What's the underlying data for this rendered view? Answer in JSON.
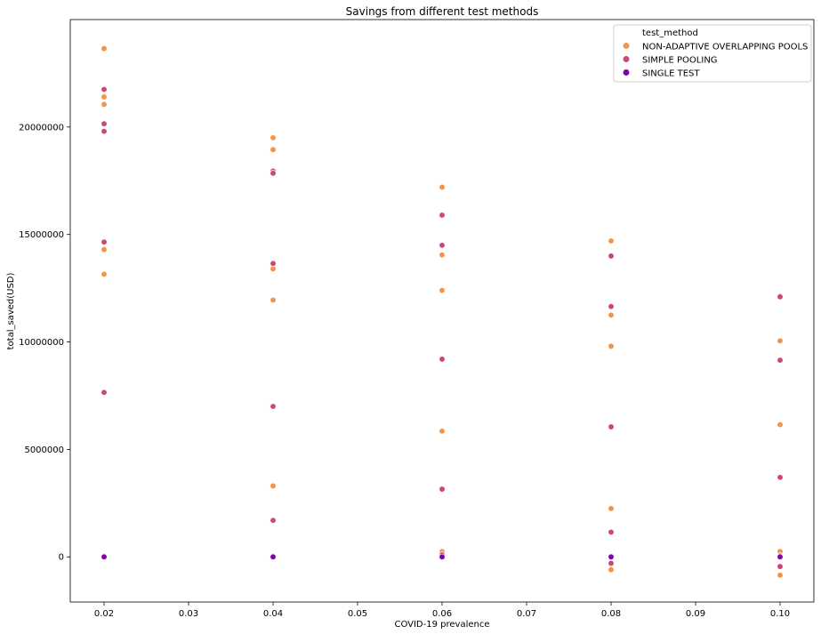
{
  "chart_data": {
    "type": "scatter",
    "title": "Savings from different test methods",
    "xlabel": "COVID-19 prevalence",
    "ylabel": "total_saved(USD)",
    "xlim": [
      0.016,
      0.104
    ],
    "ylim": [
      -2100000,
      25000000
    ],
    "xticks": [
      "0.02",
      "0.03",
      "0.04",
      "0.05",
      "0.06",
      "0.07",
      "0.08",
      "0.09",
      "0.10"
    ],
    "xtick_values": [
      0.02,
      0.03,
      0.04,
      0.05,
      0.06,
      0.07,
      0.08,
      0.09,
      0.1
    ],
    "yticks": [
      "0",
      "5000000",
      "10000000",
      "15000000",
      "20000000"
    ],
    "ytick_values": [
      0,
      5000000,
      10000000,
      15000000,
      20000000
    ],
    "grid": false,
    "legend": {
      "title": "test_method",
      "placement": "top-right"
    },
    "series": [
      {
        "name": "NON-ADAPTIVE OVERLAPPING POOLS",
        "color": "#f0954a",
        "points": [
          [
            0.02,
            23650000
          ],
          [
            0.02,
            21400000
          ],
          [
            0.02,
            21050000
          ],
          [
            0.02,
            14300000
          ],
          [
            0.02,
            13150000
          ],
          [
            0.04,
            19500000
          ],
          [
            0.04,
            18950000
          ],
          [
            0.04,
            13400000
          ],
          [
            0.04,
            11950000
          ],
          [
            0.04,
            3300000
          ],
          [
            0.06,
            17200000
          ],
          [
            0.06,
            14050000
          ],
          [
            0.06,
            12400000
          ],
          [
            0.06,
            5850000
          ],
          [
            0.06,
            250000
          ],
          [
            0.08,
            14700000
          ],
          [
            0.08,
            11250000
          ],
          [
            0.08,
            9800000
          ],
          [
            0.08,
            2250000
          ],
          [
            0.08,
            -600000
          ],
          [
            0.1,
            12150000
          ],
          [
            0.1,
            10050000
          ],
          [
            0.1,
            6150000
          ],
          [
            0.1,
            250000
          ],
          [
            0.1,
            -850000
          ]
        ]
      },
      {
        "name": "SIMPLE POOLING",
        "color": "#cc4778",
        "points": [
          [
            0.02,
            21750000
          ],
          [
            0.02,
            20150000
          ],
          [
            0.02,
            19800000
          ],
          [
            0.02,
            14650000
          ],
          [
            0.02,
            7650000
          ],
          [
            0.04,
            17950000
          ],
          [
            0.04,
            17850000
          ],
          [
            0.04,
            13650000
          ],
          [
            0.04,
            7000000
          ],
          [
            0.04,
            1700000
          ],
          [
            0.06,
            15900000
          ],
          [
            0.06,
            14500000
          ],
          [
            0.06,
            9200000
          ],
          [
            0.06,
            3150000
          ],
          [
            0.06,
            100000
          ],
          [
            0.08,
            14000000
          ],
          [
            0.08,
            11650000
          ],
          [
            0.08,
            6050000
          ],
          [
            0.08,
            1150000
          ],
          [
            0.08,
            -300000
          ],
          [
            0.1,
            12100000
          ],
          [
            0.1,
            9150000
          ],
          [
            0.1,
            3700000
          ],
          [
            0.1,
            50000
          ],
          [
            0.1,
            -450000
          ]
        ]
      },
      {
        "name": "SINGLE TEST",
        "color": "#7e03a8",
        "points": [
          [
            0.02,
            0
          ],
          [
            0.04,
            0
          ],
          [
            0.06,
            0
          ],
          [
            0.08,
            0
          ],
          [
            0.1,
            0
          ]
        ]
      }
    ]
  }
}
